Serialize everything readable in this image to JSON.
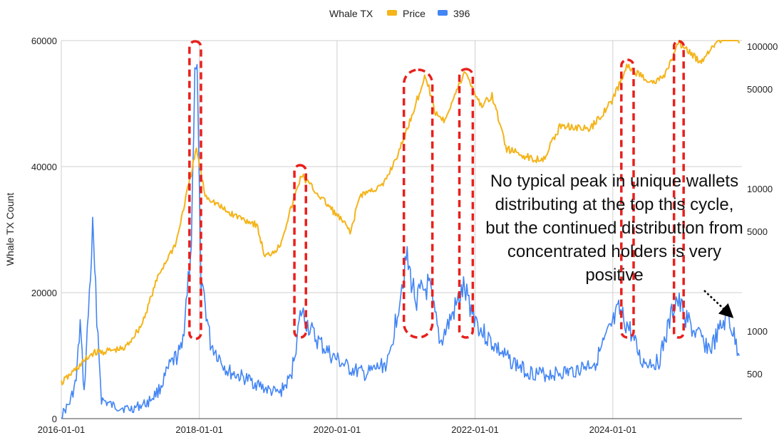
{
  "chart_data": {
    "type": "line",
    "legend": {
      "title": "Whale TX",
      "position": "top-center",
      "entries": [
        {
          "name": "Price",
          "color": "#F4B41A"
        },
        {
          "name": "396",
          "color": "#4285F4"
        }
      ]
    },
    "ylabel": "Whale TX Count",
    "ylim": [
      0,
      60000
    ],
    "y_ticks": [
      "0",
      "20000",
      "40000",
      "60000"
    ],
    "y2_scale": "log",
    "y2_ticks": [
      "500",
      "1000",
      "5000",
      "10000",
      "50000",
      "100000"
    ],
    "x_ticks": [
      "2016-01-01",
      "2018-01-01",
      "2020-01-01",
      "2022-01-01",
      "2024-01-01"
    ],
    "grid": true,
    "series": [
      {
        "name": "396",
        "axis": "left",
        "color": "#4285F4",
        "points": [
          [
            "2016-01-01",
            500
          ],
          [
            "2016-02-15",
            2500
          ],
          [
            "2016-03-20",
            6000
          ],
          [
            "2016-04-10",
            15000
          ],
          [
            "2016-05-01",
            4000
          ],
          [
            "2016-06-15",
            29500
          ],
          [
            "2016-07-01",
            20000
          ],
          [
            "2016-08-01",
            3000
          ],
          [
            "2016-10-01",
            2000
          ],
          [
            "2017-01-01",
            1500
          ],
          [
            "2017-04-01",
            2500
          ],
          [
            "2017-06-01",
            4500
          ],
          [
            "2017-08-01",
            8500
          ],
          [
            "2017-10-01",
            11000
          ],
          [
            "2017-11-20",
            28000
          ],
          [
            "2017-12-15",
            59000
          ],
          [
            "2018-01-10",
            23000
          ],
          [
            "2018-03-01",
            12000
          ],
          [
            "2018-06-01",
            7500
          ],
          [
            "2018-10-01",
            6000
          ],
          [
            "2019-01-01",
            4500
          ],
          [
            "2019-03-01",
            4000
          ],
          [
            "2019-05-01",
            6500
          ],
          [
            "2019-06-25",
            17000
          ],
          [
            "2019-09-01",
            13000
          ],
          [
            "2019-12-01",
            10000
          ],
          [
            "2020-03-01",
            8000
          ],
          [
            "2020-06-01",
            7000
          ],
          [
            "2020-10-01",
            9000
          ],
          [
            "2021-01-01",
            25500
          ],
          [
            "2021-02-20",
            19000
          ],
          [
            "2021-05-01",
            21000
          ],
          [
            "2021-07-01",
            12000
          ],
          [
            "2021-11-01",
            20500
          ],
          [
            "2022-02-01",
            14000
          ],
          [
            "2022-06-01",
            10000
          ],
          [
            "2022-10-01",
            7500
          ],
          [
            "2023-01-01",
            7000
          ],
          [
            "2023-06-01",
            7500
          ],
          [
            "2023-10-01",
            9000
          ],
          [
            "2024-02-01",
            17000
          ],
          [
            "2024-04-01",
            14000
          ],
          [
            "2024-06-01",
            9000
          ],
          [
            "2024-09-01",
            9000
          ],
          [
            "2024-12-01",
            19000
          ],
          [
            "2025-03-01",
            14000
          ],
          [
            "2025-06-01",
            11000
          ],
          [
            "2025-09-01",
            16500
          ],
          [
            "2025-11-01",
            10000
          ]
        ]
      },
      {
        "name": "Price",
        "axis": "right",
        "color": "#F4B41A",
        "points": [
          [
            "2016-01-01",
            430
          ],
          [
            "2016-06-15",
            700
          ],
          [
            "2016-12-01",
            750
          ],
          [
            "2017-03-01",
            1100
          ],
          [
            "2017-06-01",
            2500
          ],
          [
            "2017-09-01",
            4200
          ],
          [
            "2017-12-17",
            19000
          ],
          [
            "2018-02-01",
            9000
          ],
          [
            "2018-06-01",
            6800
          ],
          [
            "2018-11-01",
            5600
          ],
          [
            "2018-12-15",
            3300
          ],
          [
            "2019-03-01",
            3900
          ],
          [
            "2019-06-26",
            12500
          ],
          [
            "2019-09-01",
            9800
          ],
          [
            "2019-12-01",
            7200
          ],
          [
            "2020-03-15",
            5000
          ],
          [
            "2020-05-01",
            9000
          ],
          [
            "2020-09-01",
            10500
          ],
          [
            "2020-12-01",
            19000
          ],
          [
            "2021-04-14",
            63000
          ],
          [
            "2021-06-01",
            35000
          ],
          [
            "2021-07-20",
            30000
          ],
          [
            "2021-11-10",
            67000
          ],
          [
            "2022-02-01",
            38000
          ],
          [
            "2022-04-01",
            45000
          ],
          [
            "2022-06-18",
            19000
          ],
          [
            "2022-11-10",
            16000
          ],
          [
            "2023-01-01",
            16500
          ],
          [
            "2023-04-01",
            28000
          ],
          [
            "2023-09-01",
            26000
          ],
          [
            "2024-01-01",
            42000
          ],
          [
            "2024-03-14",
            72000
          ],
          [
            "2024-08-05",
            55000
          ],
          [
            "2024-10-01",
            62000
          ],
          [
            "2024-12-17",
            106000
          ],
          [
            "2025-04-08",
            77000
          ],
          [
            "2025-07-01",
            108000
          ],
          [
            "2025-10-06",
            124000
          ],
          [
            "2025-11-01",
            105000
          ]
        ]
      }
    ],
    "highlight_periods": [
      [
        "2017-11-10",
        "2018-01-10"
      ],
      [
        "2019-05-20",
        "2019-07-20"
      ],
      [
        "2020-12-20",
        "2021-05-20"
      ],
      [
        "2021-10-10",
        "2021-12-20"
      ],
      [
        "2024-02-15",
        "2024-04-20"
      ],
      [
        "2024-11-20",
        "2025-01-10"
      ]
    ],
    "annotation": "No typical peak in unique wallets distributing at the top this cycle, but the continued distribution from concentrated holders is very positive"
  }
}
